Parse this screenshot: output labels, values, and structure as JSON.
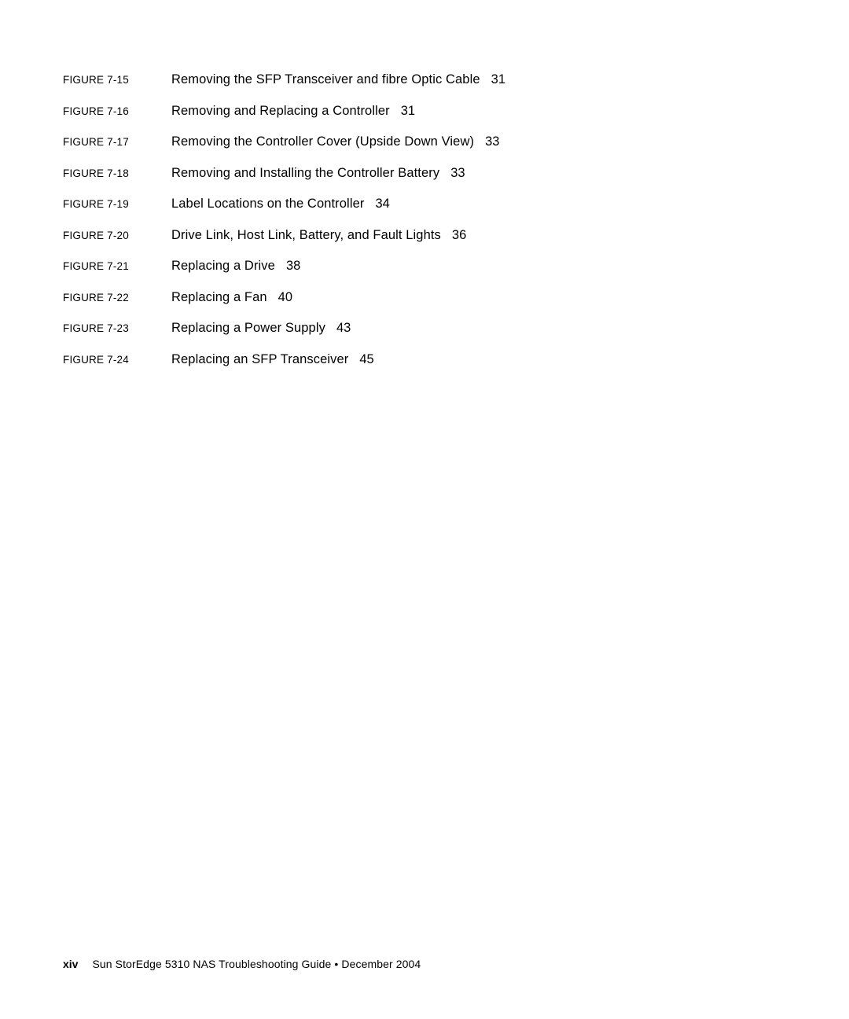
{
  "figures": [
    {
      "label": "FIGURE 7-15",
      "title": "Removing the SFP Transceiver and fibre Optic Cable",
      "page": "31"
    },
    {
      "label": "FIGURE 7-16",
      "title": "Removing and Replacing a Controller",
      "page": "31"
    },
    {
      "label": "FIGURE 7-17",
      "title": "Removing the Controller Cover (Upside Down View)",
      "page": "33"
    },
    {
      "label": "FIGURE 7-18",
      "title": "Removing and Installing the Controller Battery",
      "page": "33"
    },
    {
      "label": "FIGURE 7-19",
      "title": "Label Locations on the Controller",
      "page": "34"
    },
    {
      "label": "FIGURE 7-20",
      "title": "Drive Link, Host Link, Battery, and Fault Lights",
      "page": "36"
    },
    {
      "label": "FIGURE 7-21",
      "title": "Replacing a Drive",
      "page": "38"
    },
    {
      "label": "FIGURE 7-22",
      "title": "Replacing a Fan",
      "page": "40"
    },
    {
      "label": "FIGURE 7-23",
      "title": "Replacing a Power Supply",
      "page": "43"
    },
    {
      "label": "FIGURE 7-24",
      "title": "Replacing an SFP Transceiver",
      "page": "45"
    }
  ],
  "footer": {
    "pagenum": "xiv",
    "text": "Sun StorEdge 5310 NAS Troubleshooting Guide  •  December 2004"
  }
}
